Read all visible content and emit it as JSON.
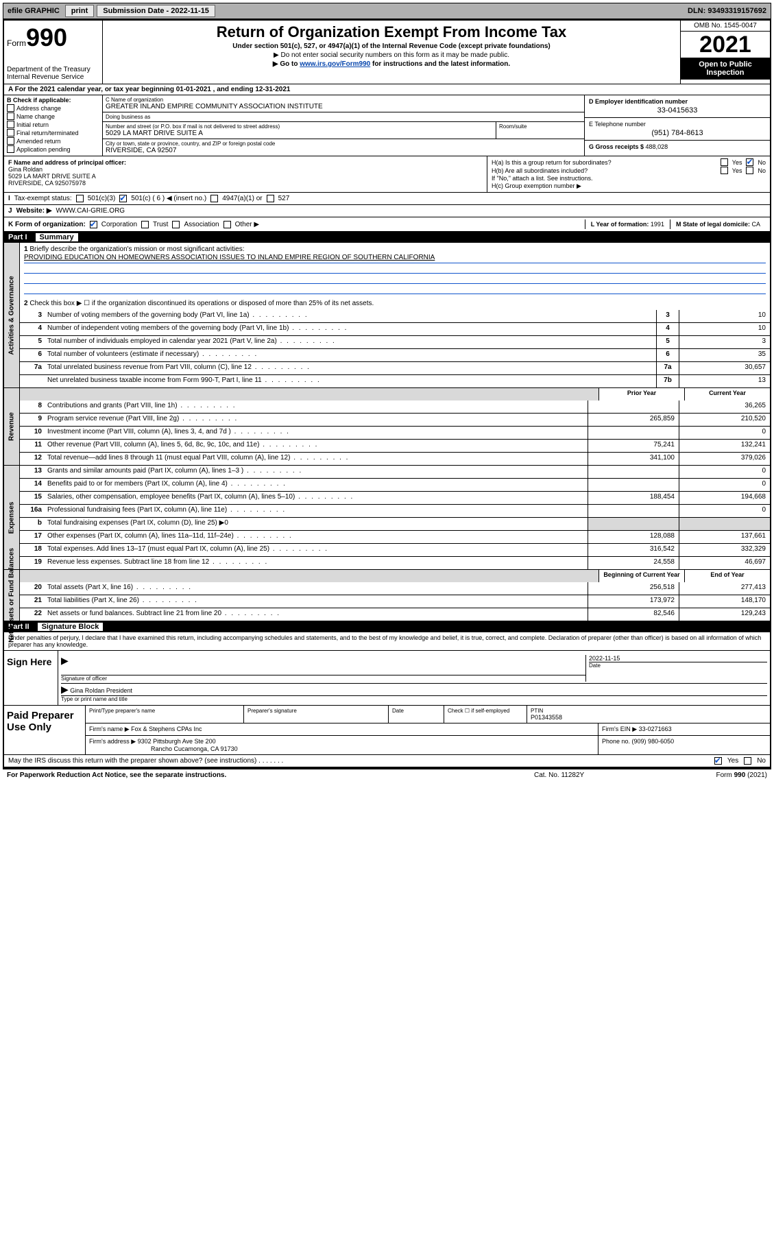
{
  "toolbar": {
    "efile_label": "efile GRAPHIC",
    "print_label": "print",
    "submission_label": "Submission Date - 2022-11-15",
    "dln_label": "DLN: 93493319157692"
  },
  "header": {
    "form_word": "Form",
    "form_number": "990",
    "dept": "Department of the Treasury",
    "irs": "Internal Revenue Service",
    "title": "Return of Organization Exempt From Income Tax",
    "subtitle": "Under section 501(c), 527, or 4947(a)(1) of the Internal Revenue Code (except private foundations)",
    "instr1": "Do not enter social security numbers on this form as it may be made public.",
    "instr2_prefix": "Go to ",
    "instr2_link": "www.irs.gov/Form990",
    "instr2_suffix": " for instructions and the latest information.",
    "omb": "OMB No. 1545-0047",
    "year": "2021",
    "inspection": "Open to Public Inspection"
  },
  "line_a": "For the 2021 calendar year, or tax year beginning 01-01-2021   , and ending 12-31-2021",
  "col_b": {
    "header": "B Check if applicable:",
    "items": [
      "Address change",
      "Name change",
      "Initial return",
      "Final return/terminated",
      "Amended return",
      "Application pending"
    ]
  },
  "col_c": {
    "name_label": "C Name of organization",
    "name": "GREATER INLAND EMPIRE COMMUNITY ASSOCIATION INSTITUTE",
    "dba_label": "Doing business as",
    "dba": "",
    "street_label": "Number and street (or P.O. box if mail is not delivered to street address)",
    "room_label": "Room/suite",
    "street": "5029 LA MART DRIVE SUITE A",
    "city_label": "City or town, state or province, country, and ZIP or foreign postal code",
    "city": "RIVERSIDE, CA  92507"
  },
  "col_de": {
    "d_label": "D Employer identification number",
    "d_value": "33-0415633",
    "e_label": "E Telephone number",
    "e_value": "(951) 784-8613",
    "g_label": "G Gross receipts $ ",
    "g_value": "488,028"
  },
  "f_block": {
    "label": "F Name and address of principal officer:",
    "name": "Gina Roldan",
    "addr1": "5029 LA MART DRIVE SUITE A",
    "addr2": "RIVERSIDE, CA  925075978"
  },
  "h_block": {
    "ha_label": "H(a)  Is this a group return for subordinates?",
    "hb_label": "H(b)  Are all subordinates included?",
    "hb_note": "If \"No,\" attach a list. See instructions.",
    "hc_label": "H(c)  Group exemption number ▶",
    "yes": "Yes",
    "no": "No"
  },
  "status_row": {
    "i_label": "I",
    "tax_exempt": "Tax-exempt status:",
    "c501c3": "501(c)(3)",
    "c501c": "501(c) ( 6 ) ◀ (insert no.)",
    "c4947": "4947(a)(1) or",
    "c527": "527"
  },
  "website_row": {
    "j_label": "J",
    "label": "Website: ▶",
    "value": "WWW.CAI-GRIE.ORG"
  },
  "k_row": {
    "label": "K Form of organization:",
    "corp": "Corporation",
    "trust": "Trust",
    "assoc": "Association",
    "other": "Other ▶",
    "l_label": "L Year of formation: ",
    "l_value": "1991",
    "m_label": "M State of legal domicile: ",
    "m_value": "CA"
  },
  "part1": {
    "label": "Part I",
    "title": "Summary"
  },
  "governance": {
    "vtab": "Activities & Governance",
    "line1_label": "Briefly describe the organization's mission or most significant activities:",
    "line1_text": "PROVIDING EDUCATION ON HOMEOWNERS ASSOCIATION ISSUES TO INLAND EMPIRE REGION OF SOUTHERN CALIFORNIA",
    "line2": "Check this box ▶ ☐  if the organization discontinued its operations or disposed of more than 25% of its net assets.",
    "lines": [
      {
        "n": "3",
        "desc": "Number of voting members of the governing body (Part VI, line 1a)",
        "box": "3",
        "val": "10"
      },
      {
        "n": "4",
        "desc": "Number of independent voting members of the governing body (Part VI, line 1b)",
        "box": "4",
        "val": "10"
      },
      {
        "n": "5",
        "desc": "Total number of individuals employed in calendar year 2021 (Part V, line 2a)",
        "box": "5",
        "val": "3"
      },
      {
        "n": "6",
        "desc": "Total number of volunteers (estimate if necessary)",
        "box": "6",
        "val": "35"
      },
      {
        "n": "7a",
        "desc": "Total unrelated business revenue from Part VIII, column (C), line 12",
        "box": "7a",
        "val": "30,657"
      },
      {
        "n": "",
        "desc": "Net unrelated business taxable income from Form 990-T, Part I, line 11",
        "box": "7b",
        "val": "13"
      }
    ]
  },
  "revenue": {
    "vtab": "Revenue",
    "head_prior": "Prior Year",
    "head_current": "Current Year",
    "lines": [
      {
        "n": "8",
        "desc": "Contributions and grants (Part VIII, line 1h)",
        "prior": "",
        "curr": "36,265"
      },
      {
        "n": "9",
        "desc": "Program service revenue (Part VIII, line 2g)",
        "prior": "265,859",
        "curr": "210,520"
      },
      {
        "n": "10",
        "desc": "Investment income (Part VIII, column (A), lines 3, 4, and 7d )",
        "prior": "",
        "curr": "0"
      },
      {
        "n": "11",
        "desc": "Other revenue (Part VIII, column (A), lines 5, 6d, 8c, 9c, 10c, and 11e)",
        "prior": "75,241",
        "curr": "132,241"
      },
      {
        "n": "12",
        "desc": "Total revenue—add lines 8 through 11 (must equal Part VIII, column (A), line 12)",
        "prior": "341,100",
        "curr": "379,026"
      }
    ]
  },
  "expenses": {
    "vtab": "Expenses",
    "lines": [
      {
        "n": "13",
        "desc": "Grants and similar amounts paid (Part IX, column (A), lines 1–3 )",
        "prior": "",
        "curr": "0"
      },
      {
        "n": "14",
        "desc": "Benefits paid to or for members (Part IX, column (A), line 4)",
        "prior": "",
        "curr": "0"
      },
      {
        "n": "15",
        "desc": "Salaries, other compensation, employee benefits (Part IX, column (A), lines 5–10)",
        "prior": "188,454",
        "curr": "194,668"
      },
      {
        "n": "16a",
        "desc": "Professional fundraising fees (Part IX, column (A), line 11e)",
        "prior": "",
        "curr": "0"
      },
      {
        "n": "b",
        "desc": "Total fundraising expenses (Part IX, column (D), line 25) ▶0",
        "prior": "SHADE",
        "curr": "SHADE"
      },
      {
        "n": "17",
        "desc": "Other expenses (Part IX, column (A), lines 11a–11d, 11f–24e)",
        "prior": "128,088",
        "curr": "137,661"
      },
      {
        "n": "18",
        "desc": "Total expenses. Add lines 13–17 (must equal Part IX, column (A), line 25)",
        "prior": "316,542",
        "curr": "332,329"
      },
      {
        "n": "19",
        "desc": "Revenue less expenses. Subtract line 18 from line 12",
        "prior": "24,558",
        "curr": "46,697"
      }
    ]
  },
  "netassets": {
    "vtab": "Net Assets or Fund Balances",
    "head_begin": "Beginning of Current Year",
    "head_end": "End of Year",
    "lines": [
      {
        "n": "20",
        "desc": "Total assets (Part X, line 16)",
        "prior": "256,518",
        "curr": "277,413"
      },
      {
        "n": "21",
        "desc": "Total liabilities (Part X, line 26)",
        "prior": "173,972",
        "curr": "148,170"
      },
      {
        "n": "22",
        "desc": "Net assets or fund balances. Subtract line 21 from line 20",
        "prior": "82,546",
        "curr": "129,243"
      }
    ]
  },
  "part2": {
    "label": "Part II",
    "title": "Signature Block"
  },
  "penalties": "Under penalties of perjury, I declare that I have examined this return, including accompanying schedules and statements, and to the best of my knowledge and belief, it is true, correct, and complete. Declaration of preparer (other than officer) is based on all information of which preparer has any knowledge.",
  "sign": {
    "label": "Sign Here",
    "sig_officer": "Signature of officer",
    "date_label": "Date",
    "date_value": "2022-11-15",
    "name_title": "Gina Roldan  President",
    "type_label": "Type or print name and title"
  },
  "preparer": {
    "label": "Paid Preparer Use Only",
    "print_name_label": "Print/Type preparer's name",
    "sig_label": "Preparer's signature",
    "date_label": "Date",
    "check_label": "Check ☐ if self-employed",
    "ptin_label": "PTIN",
    "ptin_value": "P01343558",
    "firm_name_label": "Firm's name   ▶ ",
    "firm_name": "Fox & Stephens CPAs Inc",
    "firm_ein_label": "Firm's EIN ▶ ",
    "firm_ein": "33-0271663",
    "firm_addr_label": "Firm's address ▶ ",
    "firm_addr1": "9302 Pittsburgh Ave Ste 200",
    "firm_addr2": "Rancho Cucamonga, CA  91730",
    "phone_label": "Phone no. ",
    "phone": "(909) 980-6050"
  },
  "discuss": {
    "text": "May the IRS discuss this return with the preparer shown above? (see instructions)",
    "yes": "Yes",
    "no": "No"
  },
  "footer": {
    "left": "For Paperwork Reduction Act Notice, see the separate instructions.",
    "mid": "Cat. No. 11282Y",
    "right_prefix": "Form ",
    "right_form": "990",
    "right_suffix": " (2021)"
  }
}
